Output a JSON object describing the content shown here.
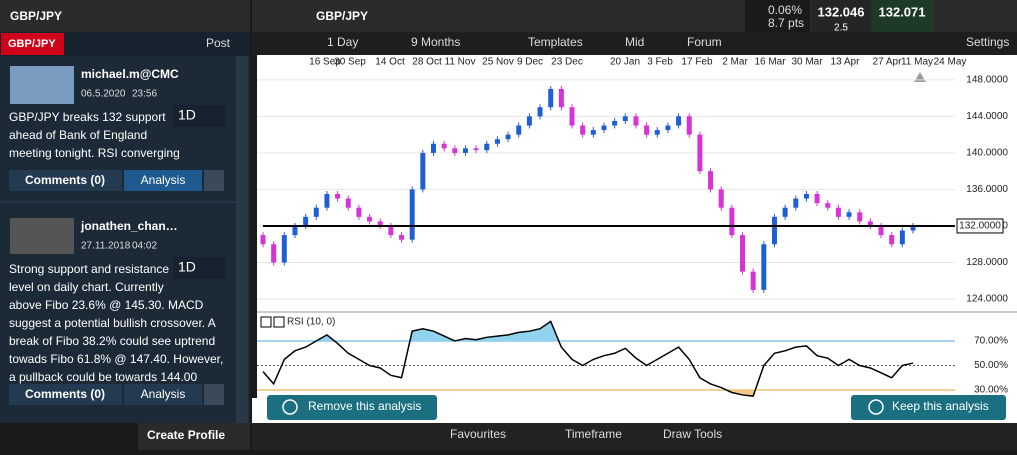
{
  "left_panel": {
    "title": "GBP/JPY",
    "tab": "GBP/JPY",
    "post": "Post",
    "create_profile": "Create Profile",
    "posts": [
      {
        "author": "michael.m@CMC",
        "date": "06.5.2020",
        "time": "23:56",
        "timeframe": "1D",
        "lines": [
          "GBP/JPY breaks 132 support",
          "ahead of Bank of England",
          "meeting tonight. RSI converging"
        ],
        "comments": "Comments (0)",
        "analysis": "Analysis"
      },
      {
        "author": "jonathen_chan…",
        "date": "27.11.2018",
        "time": "04:02",
        "timeframe": "1D",
        "lines": [
          "Strong support and resistance",
          "level on daily chart. Currently",
          "above Fibo 23.6% @ 145.30. MACD",
          "suggest a potential bullish crossover. A",
          "break of Fibo 38.2% could see uptrend",
          "towads Fibo 61.8% @ 147.40. However,",
          "a pullback could be towards 144.00"
        ],
        "comments": "Comments (0)",
        "analysis": "Analysis"
      }
    ]
  },
  "chart_header": {
    "symbol": "GBP/JPY",
    "change": "0.06%",
    "pts": "8.7 pts",
    "bid": "132.046",
    "spread": "2.5",
    "ask": "132.071"
  },
  "toolbar": [
    "1 Day",
    "9 Months",
    "Templates",
    "Mid",
    "Forum",
    "Settings"
  ],
  "chart_data": {
    "type": "candlestick",
    "dates": [
      "16 Sep",
      "30 Sep",
      "14 Oct",
      "28 Oct",
      "11 Nov",
      "25 Nov",
      "9 Dec",
      "23 Dec",
      "20 Jan",
      "3 Feb",
      "17 Feb",
      "2 Mar",
      "16 Mar",
      "30 Mar",
      "13 Apr",
      "27 Apr",
      "11 May",
      "24 May"
    ],
    "open": [
      131,
      130,
      128,
      131,
      132,
      133,
      134,
      135.5,
      135,
      134,
      133,
      132.5,
      132,
      131,
      130.5,
      136,
      140,
      141,
      140.5,
      140,
      140.5,
      140.3,
      141,
      141.5,
      142,
      143,
      144,
      145,
      147,
      145,
      143,
      142,
      142.5,
      143,
      143.5,
      144,
      143,
      142,
      142.5,
      143,
      144,
      142,
      138,
      136,
      134,
      131,
      127,
      125,
      130,
      133,
      134,
      135,
      135.5,
      134.5,
      134,
      133,
      133.5,
      132.5,
      132,
      131,
      130,
      131.5
    ],
    "close": [
      130,
      128,
      131,
      132,
      133,
      134,
      135.5,
      135,
      134,
      133,
      132.5,
      132,
      131,
      130.5,
      136,
      140,
      141,
      140.5,
      140,
      140.5,
      140.3,
      141,
      141.5,
      142,
      143,
      144,
      145,
      147,
      145,
      143,
      142,
      142.5,
      143,
      143.5,
      144,
      143,
      142,
      142.5,
      143,
      144,
      142,
      138,
      136,
      134,
      131,
      127,
      125,
      130,
      133,
      134,
      135,
      135.5,
      134.5,
      134,
      133,
      133.5,
      132.5,
      132,
      131,
      130,
      131.5,
      132
    ],
    "up_color": "#1f5fd6",
    "down_color": "#d633d6",
    "ylim": [
      122.8,
      150.5
    ],
    "yticks": [
      {
        "value": 148,
        "label": "148.0000"
      },
      {
        "value": 144,
        "label": "144.0000"
      },
      {
        "value": 140,
        "label": "140.0000"
      },
      {
        "value": 136,
        "label": "136.0000"
      },
      {
        "value": 132,
        "label": "132.0000"
      },
      {
        "value": 128,
        "label": "128.0000"
      },
      {
        "value": 124,
        "label": "124.0000"
      }
    ],
    "hline": {
      "value": 132,
      "label": "132.0000"
    },
    "rsi": {
      "name": "RSI (10, 0)",
      "ylim": [
        23.5,
        91.2
      ],
      "yticks": [
        {
          "value": 70,
          "label": "70.00%"
        },
        {
          "value": 50,
          "label": "50.00%"
        },
        {
          "value": 30,
          "label": "30.00%"
        }
      ],
      "values": [
        45,
        35,
        55,
        62,
        65,
        70,
        75,
        68,
        60,
        55,
        50,
        48,
        42,
        40,
        78,
        80,
        78,
        74,
        70,
        72,
        71,
        73,
        74,
        75,
        77,
        78,
        80,
        86,
        65,
        55,
        50,
        55,
        58,
        60,
        64,
        56,
        50,
        55,
        60,
        65,
        55,
        40,
        35,
        32,
        28,
        26,
        25,
        50,
        60,
        62,
        65,
        66,
        58,
        56,
        50,
        55,
        50,
        48,
        44,
        40,
        50,
        52
      ]
    }
  },
  "buttons": {
    "remove": "Remove this analysis",
    "keep": "Keep this analysis"
  },
  "bottom_bar": [
    "Favourites",
    "Timeframe",
    "Draw Tools"
  ]
}
